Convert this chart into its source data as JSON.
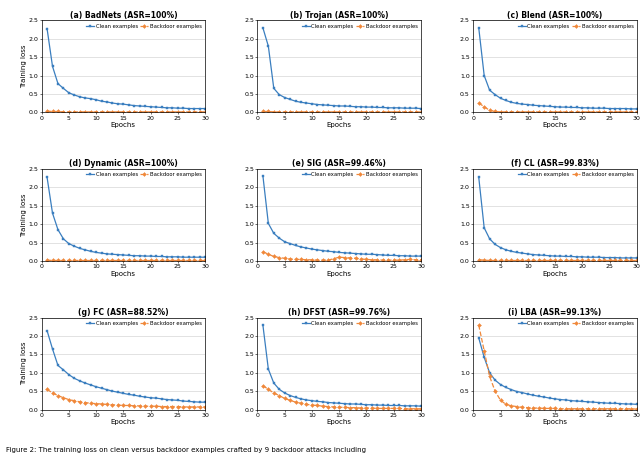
{
  "figure_caption": "Figure 2: The training loss on clean versus backdoor examples crafted by 9 backdoor attacks including",
  "subplots": [
    {
      "label": "(a) BadNets (ASR=100%)",
      "clean": [
        2.28,
        1.25,
        0.78,
        0.65,
        0.53,
        0.47,
        0.42,
        0.39,
        0.37,
        0.34,
        0.3,
        0.28,
        0.25,
        0.23,
        0.22,
        0.2,
        0.18,
        0.17,
        0.16,
        0.15,
        0.14,
        0.13,
        0.12,
        0.12,
        0.11,
        0.11,
        0.1,
        0.1,
        0.1,
        0.1
      ],
      "backdoor": [
        0.03,
        0.02,
        0.02,
        0.01,
        0.01,
        0.01,
        0.01,
        0.01,
        0.01,
        0.01,
        0.01,
        0.01,
        0.01,
        0.01,
        0.01,
        0.01,
        0.01,
        0.01,
        0.01,
        0.01,
        0.01,
        0.01,
        0.01,
        0.01,
        0.01,
        0.01,
        0.01,
        0.01,
        0.01,
        0.01
      ],
      "ylim": [
        0,
        2.5
      ]
    },
    {
      "label": "(b) Trojan (ASR=100%)",
      "clean": [
        2.3,
        1.8,
        0.65,
        0.48,
        0.4,
        0.35,
        0.3,
        0.27,
        0.25,
        0.23,
        0.21,
        0.2,
        0.19,
        0.18,
        0.17,
        0.17,
        0.16,
        0.15,
        0.15,
        0.14,
        0.14,
        0.13,
        0.13,
        0.12,
        0.12,
        0.12,
        0.11,
        0.11,
        0.11,
        0.1
      ],
      "backdoor": [
        0.02,
        0.02,
        0.01,
        0.01,
        0.01,
        0.01,
        0.01,
        0.01,
        0.01,
        0.01,
        0.01,
        0.01,
        0.01,
        0.01,
        0.01,
        0.01,
        0.01,
        0.01,
        0.01,
        0.01,
        0.01,
        0.01,
        0.01,
        0.01,
        0.01,
        0.01,
        0.01,
        0.01,
        0.01,
        0.01
      ],
      "ylim": [
        0,
        2.5
      ]
    },
    {
      "label": "(c) Blend (ASR=100%)",
      "clean": [
        2.3,
        1.0,
        0.6,
        0.48,
        0.38,
        0.32,
        0.27,
        0.24,
        0.22,
        0.21,
        0.19,
        0.18,
        0.17,
        0.16,
        0.15,
        0.14,
        0.14,
        0.13,
        0.13,
        0.12,
        0.12,
        0.11,
        0.11,
        0.11,
        0.1,
        0.1,
        0.1,
        0.1,
        0.09,
        0.09
      ],
      "backdoor": [
        0.25,
        0.15,
        0.05,
        0.02,
        0.01,
        0.01,
        0.01,
        0.01,
        0.01,
        0.01,
        0.01,
        0.01,
        0.01,
        0.01,
        0.01,
        0.01,
        0.01,
        0.01,
        0.01,
        0.01,
        0.01,
        0.01,
        0.01,
        0.01,
        0.01,
        0.01,
        0.01,
        0.01,
        0.01,
        0.01
      ],
      "ylim": [
        0,
        2.5
      ]
    },
    {
      "label": "(d) Dynamic (ASR=100%)",
      "clean": [
        2.28,
        1.3,
        0.85,
        0.6,
        0.47,
        0.4,
        0.34,
        0.3,
        0.26,
        0.23,
        0.21,
        0.19,
        0.18,
        0.17,
        0.16,
        0.15,
        0.14,
        0.14,
        0.13,
        0.13,
        0.12,
        0.12,
        0.11,
        0.11,
        0.11,
        0.1,
        0.1,
        0.1,
        0.1,
        0.1
      ],
      "backdoor": [
        0.02,
        0.01,
        0.01,
        0.01,
        0.01,
        0.01,
        0.01,
        0.01,
        0.01,
        0.01,
        0.01,
        0.01,
        0.01,
        0.01,
        0.01,
        0.01,
        0.01,
        0.01,
        0.01,
        0.01,
        0.01,
        0.01,
        0.01,
        0.01,
        0.01,
        0.01,
        0.01,
        0.01,
        0.01,
        0.01
      ],
      "ylim": [
        0,
        2.5
      ]
    },
    {
      "label": "(e) SIG (ASR=99.46%)",
      "clean": [
        2.32,
        1.02,
        0.75,
        0.62,
        0.52,
        0.47,
        0.42,
        0.38,
        0.35,
        0.32,
        0.3,
        0.28,
        0.26,
        0.25,
        0.23,
        0.22,
        0.21,
        0.2,
        0.19,
        0.18,
        0.18,
        0.17,
        0.16,
        0.15,
        0.15,
        0.14,
        0.14,
        0.13,
        0.13,
        0.13
      ],
      "backdoor": [
        0.25,
        0.18,
        0.12,
        0.09,
        0.07,
        0.05,
        0.04,
        0.04,
        0.03,
        0.03,
        0.02,
        0.02,
        0.02,
        0.06,
        0.1,
        0.09,
        0.08,
        0.07,
        0.05,
        0.04,
        0.03,
        0.03,
        0.02,
        0.02,
        0.02,
        0.02,
        0.03,
        0.04,
        0.03,
        0.03
      ],
      "ylim": [
        0,
        2.5
      ]
    },
    {
      "label": "(f) CL (ASR=99.83%)",
      "clean": [
        2.28,
        0.9,
        0.6,
        0.45,
        0.36,
        0.3,
        0.26,
        0.23,
        0.21,
        0.19,
        0.17,
        0.16,
        0.15,
        0.14,
        0.13,
        0.13,
        0.12,
        0.12,
        0.11,
        0.11,
        0.1,
        0.1,
        0.1,
        0.09,
        0.09,
        0.09,
        0.08,
        0.08,
        0.08,
        0.08
      ],
      "backdoor": [
        0.03,
        0.02,
        0.01,
        0.01,
        0.01,
        0.01,
        0.01,
        0.01,
        0.01,
        0.01,
        0.01,
        0.01,
        0.01,
        0.01,
        0.01,
        0.01,
        0.01,
        0.01,
        0.01,
        0.01,
        0.01,
        0.01,
        0.01,
        0.01,
        0.01,
        0.01,
        0.01,
        0.01,
        0.01,
        0.01
      ],
      "ylim": [
        0,
        2.5
      ]
    },
    {
      "label": "(g) FC (ASR=88.52%)",
      "clean": [
        2.15,
        1.65,
        1.2,
        1.08,
        0.95,
        0.85,
        0.78,
        0.72,
        0.67,
        0.62,
        0.58,
        0.54,
        0.5,
        0.47,
        0.44,
        0.41,
        0.39,
        0.36,
        0.34,
        0.32,
        0.31,
        0.29,
        0.27,
        0.26,
        0.25,
        0.23,
        0.22,
        0.21,
        0.2,
        0.2
      ],
      "backdoor": [
        0.55,
        0.45,
        0.38,
        0.32,
        0.27,
        0.24,
        0.21,
        0.19,
        0.17,
        0.16,
        0.15,
        0.14,
        0.13,
        0.12,
        0.11,
        0.11,
        0.1,
        0.1,
        0.09,
        0.09,
        0.09,
        0.08,
        0.08,
        0.08,
        0.08,
        0.07,
        0.07,
        0.07,
        0.07,
        0.07
      ],
      "ylim": [
        0,
        2.5
      ]
    },
    {
      "label": "(h) DFST (ASR=99.76%)",
      "clean": [
        2.3,
        1.1,
        0.72,
        0.55,
        0.45,
        0.38,
        0.33,
        0.29,
        0.26,
        0.24,
        0.22,
        0.21,
        0.19,
        0.18,
        0.17,
        0.16,
        0.15,
        0.15,
        0.14,
        0.13,
        0.13,
        0.12,
        0.12,
        0.11,
        0.11,
        0.11,
        0.1,
        0.1,
        0.1,
        0.09
      ],
      "backdoor": [
        0.65,
        0.55,
        0.45,
        0.38,
        0.3,
        0.25,
        0.2,
        0.17,
        0.14,
        0.12,
        0.11,
        0.09,
        0.08,
        0.07,
        0.06,
        0.06,
        0.05,
        0.05,
        0.04,
        0.04,
        0.04,
        0.03,
        0.03,
        0.03,
        0.03,
        0.03,
        0.02,
        0.02,
        0.02,
        0.02
      ],
      "ylim": [
        0,
        2.5
      ]
    },
    {
      "label": "(i) LBA (ASR=99.13%)",
      "clean": [
        1.95,
        1.42,
        1.0,
        0.8,
        0.68,
        0.6,
        0.54,
        0.49,
        0.46,
        0.42,
        0.39,
        0.36,
        0.34,
        0.31,
        0.29,
        0.27,
        0.26,
        0.24,
        0.23,
        0.22,
        0.21,
        0.2,
        0.19,
        0.18,
        0.17,
        0.17,
        0.16,
        0.15,
        0.15,
        0.14
      ],
      "backdoor": [
        2.3,
        1.6,
        0.9,
        0.5,
        0.25,
        0.14,
        0.1,
        0.08,
        0.06,
        0.05,
        0.04,
        0.04,
        0.03,
        0.03,
        0.03,
        0.02,
        0.02,
        0.02,
        0.02,
        0.02,
        0.02,
        0.02,
        0.02,
        0.02,
        0.02,
        0.02,
        0.02,
        0.02,
        0.02,
        0.01
      ],
      "ylim": [
        0,
        2.5
      ]
    }
  ],
  "clean_color": "#3a7ebf",
  "backdoor_color": "#f0883a",
  "xlabel": "Epochs",
  "ylabel": "Training loss",
  "xlim": [
    0,
    30
  ],
  "xticks": [
    0,
    5,
    10,
    15,
    20,
    25,
    30
  ],
  "yticks": [
    0.0,
    0.5,
    1.0,
    1.5,
    2.0,
    2.5
  ],
  "legend_labels": [
    "Clean examples",
    "Backdoor examples"
  ],
  "caption": "Figure 2: The training loss on clean versus backdoor examples crafted by 9 backdoor attacks including"
}
